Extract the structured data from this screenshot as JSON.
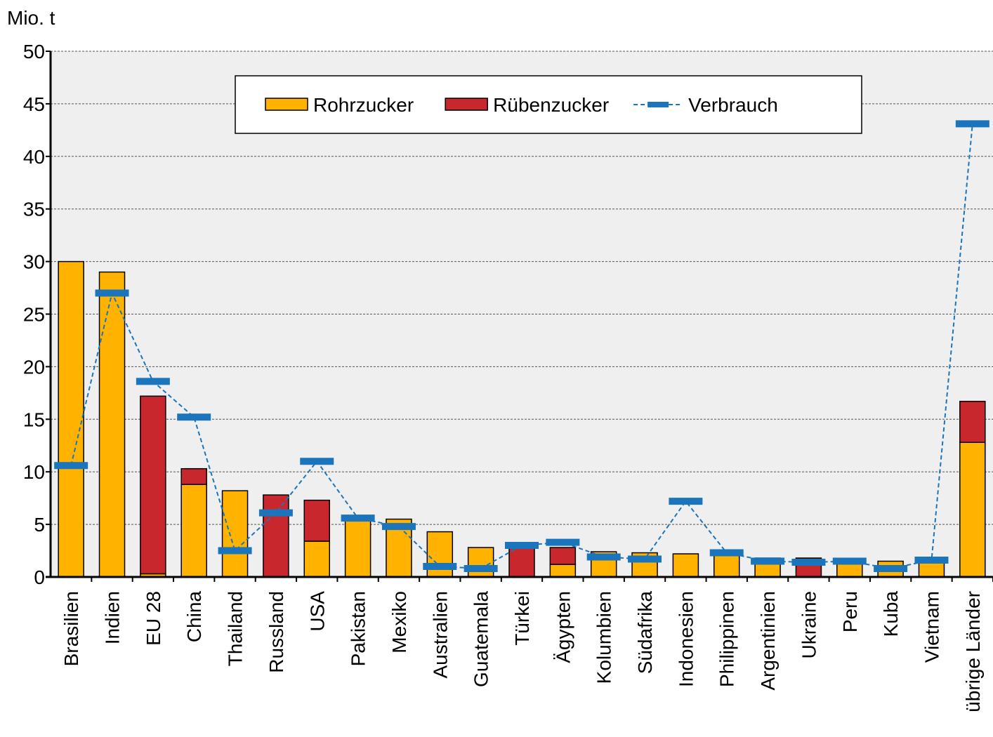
{
  "chart_data": {
    "type": "bar",
    "stacked": true,
    "y_axis_label": "Mio. t",
    "categories": [
      "Brasilien",
      "Indien",
      "EU 28",
      "China",
      "Thailand",
      "Russland",
      "USA",
      "Pakistan",
      "Mexiko",
      "Australien",
      "Guatemala",
      "Türkei",
      "Ägypten",
      "Kolumbien",
      "Südafrika",
      "Indonesien",
      "Philippinen",
      "Argentinien",
      "Ukraine",
      "Peru",
      "Kuba",
      "Vietnam",
      "übrige Länder"
    ],
    "series": [
      {
        "name": "Rohrzucker",
        "type": "bar",
        "color": "#ffb300",
        "values": [
          30,
          29,
          0.3,
          8.8,
          8.2,
          0,
          3.4,
          5.6,
          5.5,
          4.3,
          2.8,
          0,
          1.2,
          2.4,
          2.3,
          2.2,
          2.2,
          1.8,
          0,
          1.3,
          1.5,
          1.7,
          12.8
        ]
      },
      {
        "name": "Rübenzucker",
        "type": "bar",
        "color": "#c8282d",
        "values": [
          0,
          0,
          16.9,
          1.5,
          0,
          7.8,
          3.9,
          0,
          0,
          0,
          0,
          2.9,
          1.6,
          0,
          0,
          0,
          0,
          0,
          1.8,
          0,
          0,
          0,
          3.9
        ]
      },
      {
        "name": "Verbrauch",
        "type": "line",
        "color": "#1a75bc",
        "values": [
          10.6,
          27,
          18.6,
          15.2,
          2.5,
          6.1,
          11,
          5.6,
          4.8,
          1,
          0.8,
          3,
          3.3,
          1.9,
          1.7,
          7.2,
          2.3,
          1.5,
          1.4,
          1.5,
          0.8,
          1.6,
          43.1
        ]
      }
    ],
    "ylim": [
      0,
      50
    ],
    "yticks": [
      0,
      5,
      10,
      15,
      20,
      25,
      30,
      35,
      40,
      45,
      50
    ],
    "grid": true
  }
}
